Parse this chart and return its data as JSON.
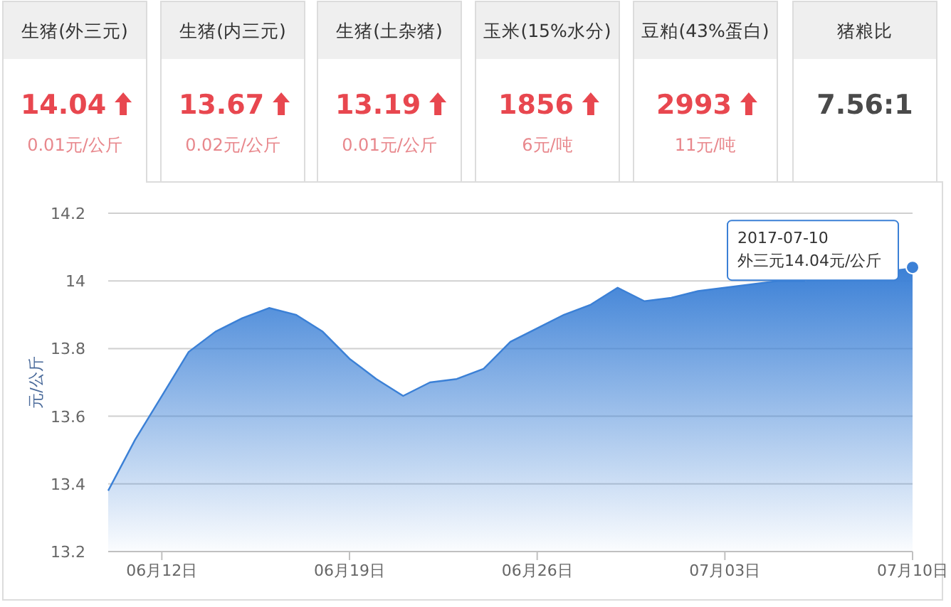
{
  "chart_data": [
    {
      "type": "other",
      "categories": [
        "生猪(外三元)",
        "生猪(内三元)",
        "生猪(土杂猪)",
        "玉米(15%水分)",
        "豆粕(43%蛋白)",
        "猪粮比"
      ],
      "value_labels": [
        "14.04",
        "13.67",
        "13.19",
        "1856",
        "2993",
        "7.56:1"
      ],
      "annotations": [
        "0.01元/公斤",
        "0.02元/公斤",
        "0.01元/公斤",
        "6元/吨",
        "11元/吨"
      ]
    },
    {
      "type": "area",
      "x": [
        "2017-06-10",
        "2017-06-11",
        "2017-06-12",
        "2017-06-13",
        "2017-06-14",
        "2017-06-15",
        "2017-06-16",
        "2017-06-17",
        "2017-06-18",
        "2017-06-19",
        "2017-06-20",
        "2017-06-21",
        "2017-06-22",
        "2017-06-23",
        "2017-06-24",
        "2017-06-25",
        "2017-06-26",
        "2017-06-27",
        "2017-06-28",
        "2017-06-29",
        "2017-06-30",
        "2017-07-01",
        "2017-07-02",
        "2017-07-03",
        "2017-07-04",
        "2017-07-05",
        "2017-07-06",
        "2017-07-07",
        "2017-07-08",
        "2017-07-09",
        "2017-07-10"
      ],
      "values": [
        13.38,
        13.53,
        13.66,
        13.79,
        13.85,
        13.89,
        13.92,
        13.9,
        13.85,
        13.77,
        13.71,
        13.66,
        13.7,
        13.71,
        13.74,
        13.82,
        13.86,
        13.9,
        13.93,
        13.98,
        13.94,
        13.95,
        13.97,
        13.98,
        13.99,
        14.0,
        14.0,
        null,
        null,
        null,
        14.04
      ],
      "color": "#3b80d6",
      "ylabel": "元/公斤",
      "xlim": [
        "2017-06-10",
        "2017-07-10"
      ],
      "ylim": [
        13.2,
        14.2
      ],
      "yticks": [
        13.2,
        13.4,
        13.6,
        13.8,
        14,
        14.2
      ],
      "xticks": [
        {
          "value": "2017-06-12",
          "label": "06月12日"
        },
        {
          "value": "2017-06-19",
          "label": "06月19日"
        },
        {
          "value": "2017-06-26",
          "label": "06月26日"
        },
        {
          "value": "2017-07-03",
          "label": "07月03日"
        },
        {
          "value": "2017-07-10",
          "label": "07月10日"
        }
      ],
      "grid": "y",
      "annotations": [
        {
          "text": "2017-07-10\n外三元14.04元/公斤",
          "x": "2017-07-10",
          "y": 14.04
        }
      ]
    }
  ]
}
